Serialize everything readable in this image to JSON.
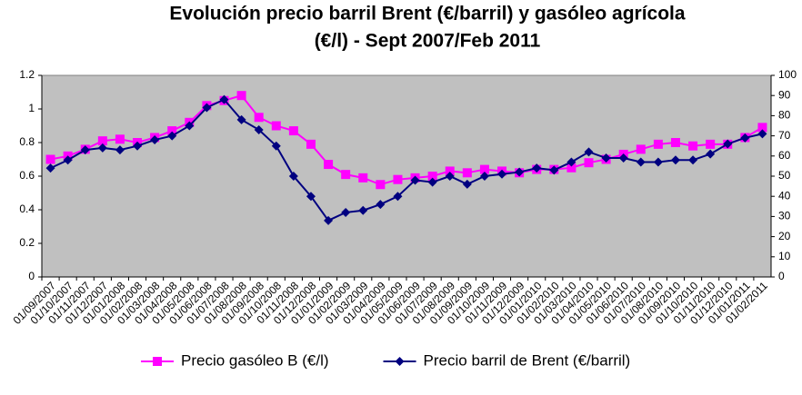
{
  "chart_data": {
    "type": "line",
    "title": [
      "Evolución precio barril Brent (€/barril) y gasóleo agrícola",
      "(€/l) - Sept 2007/Feb 2011"
    ],
    "categories": [
      "01/09/2007",
      "01/10/2007",
      "01/11/2007",
      "01/12/2007",
      "01/01/2008",
      "01/02/2008",
      "01/03/2008",
      "01/04/2008",
      "01/05/2008",
      "01/06/2008",
      "01/07/2008",
      "01/08/2008",
      "01/09/2008",
      "01/10/2008",
      "01/11/2008",
      "01/12/2008",
      "01/01/2009",
      "01/02/2009",
      "01/03/2009",
      "01/04/2009",
      "01/05/2009",
      "01/06/2009",
      "01/07/2009",
      "01/08/2009",
      "01/09/2009",
      "01/10/2009",
      "01/11/2009",
      "01/12/2009",
      "01/01/2010",
      "01/02/2010",
      "01/03/2010",
      "01/04/2010",
      "01/05/2010",
      "01/06/2010",
      "01/07/2010",
      "01/08/2010",
      "01/09/2010",
      "01/10/2010",
      "01/11/2010",
      "01/12/2010",
      "01/01/2011",
      "01/02/2011"
    ],
    "series": [
      {
        "name": "Precio gasóleo B (€/l)",
        "color": "#ff00ff",
        "marker": "square",
        "values": [
          0.7,
          0.72,
          0.76,
          0.81,
          0.82,
          0.8,
          0.83,
          0.87,
          0.92,
          1.02,
          1.05,
          1.08,
          0.95,
          0.9,
          0.87,
          0.79,
          0.67,
          0.61,
          0.59,
          0.55,
          0.58,
          0.59,
          0.6,
          0.63,
          0.62,
          0.64,
          0.63,
          0.62,
          0.64,
          0.64,
          0.65,
          0.68,
          0.7,
          0.73,
          0.76,
          0.79,
          0.8,
          0.78,
          0.79,
          0.79,
          0.83,
          0.89
        ]
      },
      {
        "name": "Precio barril de Brent (€/barril)",
        "color": "#000080",
        "marker": "diamond",
        "axis": "y2",
        "values": [
          54,
          58,
          63,
          64,
          63,
          65,
          68,
          70,
          75,
          84,
          88,
          78,
          73,
          65,
          50,
          40,
          28,
          32,
          33,
          36,
          40,
          48,
          47,
          50,
          46,
          50,
          51,
          52,
          54,
          53,
          57,
          62,
          59,
          59,
          57,
          57,
          58,
          58,
          61,
          66,
          69,
          71
        ]
      }
    ],
    "ylim": [
      0,
      1.2
    ],
    "yticks": [
      0,
      0.2,
      0.4,
      0.6,
      0.8,
      1,
      1.2
    ],
    "y2lim": [
      0,
      100
    ],
    "y2ticks": [
      0,
      10,
      20,
      30,
      40,
      50,
      60,
      70,
      80,
      90,
      100
    ],
    "grid": false,
    "legend": "bottom"
  }
}
